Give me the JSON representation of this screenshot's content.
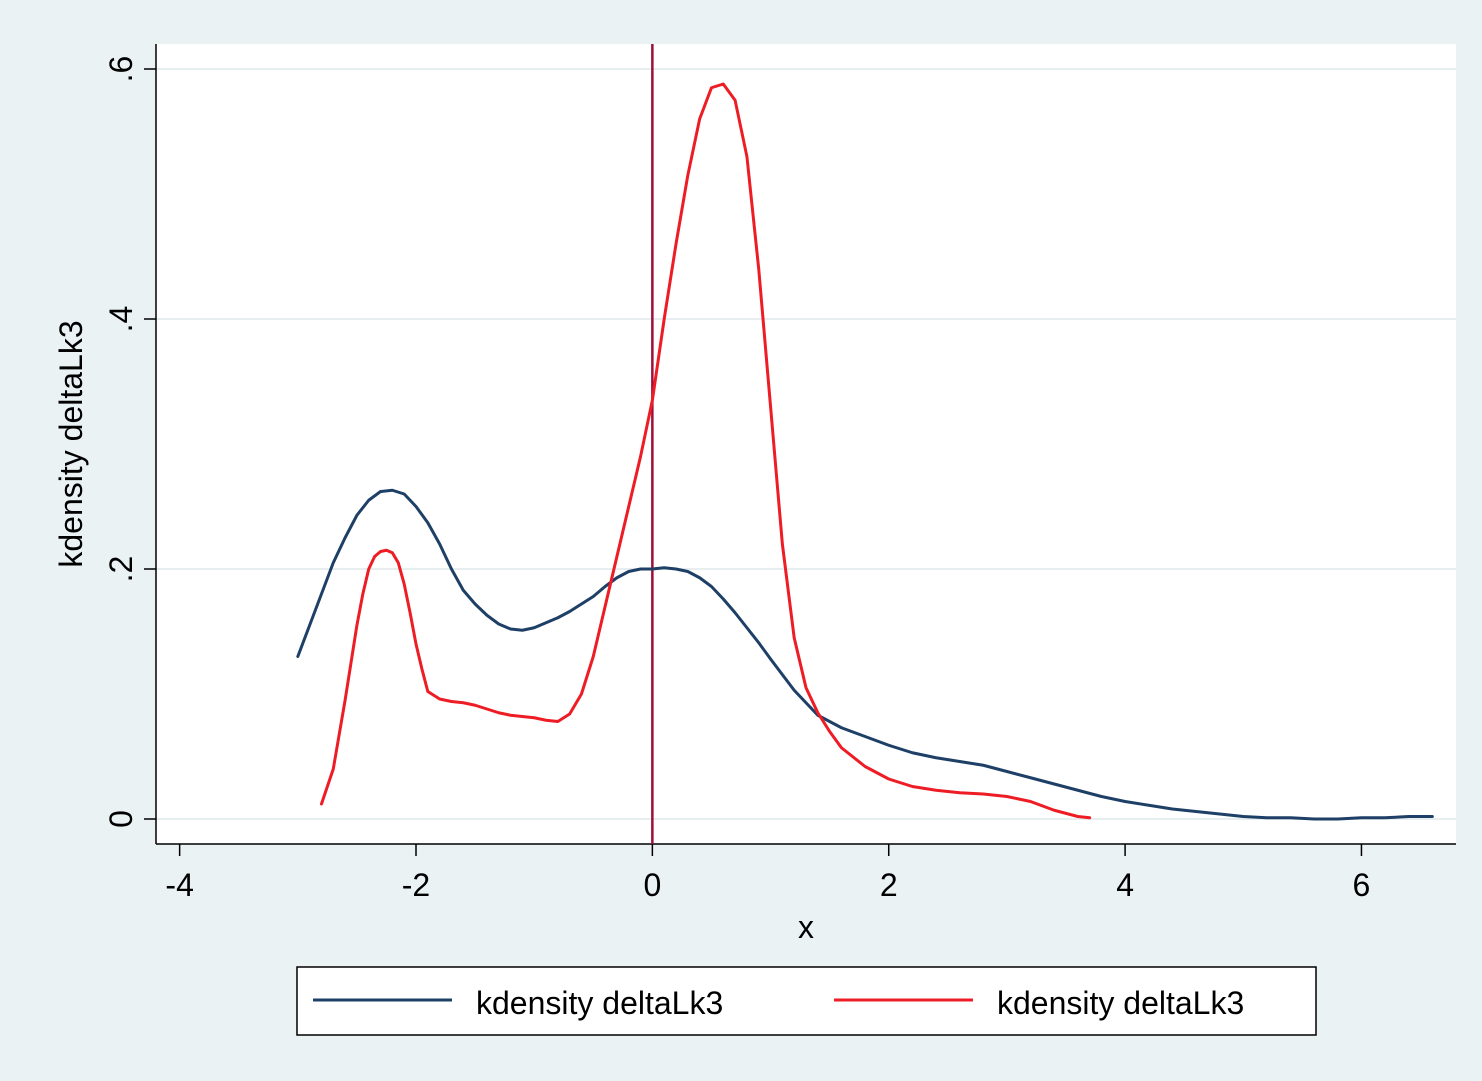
{
  "chart_data": {
    "type": "line",
    "title": "",
    "xlabel": "x",
    "ylabel": "kdensity deltaLk3",
    "xlim": [
      -4.2,
      6.8
    ],
    "ylim": [
      -0.02,
      0.62
    ],
    "x_ticks": [
      -4,
      -2,
      0,
      2,
      4,
      6
    ],
    "x_tick_labels": [
      "-4",
      "-2",
      "0",
      "2",
      "4",
      "6"
    ],
    "y_ticks": [
      0,
      0.2,
      0.4,
      0.6
    ],
    "y_tick_labels": [
      "0",
      ".2",
      ".4",
      ".6"
    ],
    "grid": "horizontal",
    "legend_position": "bottom",
    "reference_line": {
      "x": 0,
      "color": "#9e0f3a"
    },
    "series": [
      {
        "name": "kdensity deltaLk3",
        "color": "#1e3f66",
        "x": [
          -3.0,
          -2.9,
          -2.8,
          -2.7,
          -2.6,
          -2.5,
          -2.4,
          -2.3,
          -2.2,
          -2.1,
          -2.0,
          -1.9,
          -1.8,
          -1.7,
          -1.6,
          -1.5,
          -1.4,
          -1.3,
          -1.2,
          -1.1,
          -1.0,
          -0.9,
          -0.8,
          -0.7,
          -0.6,
          -0.5,
          -0.4,
          -0.3,
          -0.2,
          -0.1,
          0.0,
          0.1,
          0.2,
          0.3,
          0.4,
          0.5,
          0.6,
          0.7,
          0.8,
          0.9,
          1.0,
          1.2,
          1.4,
          1.6,
          1.8,
          2.0,
          2.2,
          2.4,
          2.6,
          2.8,
          3.0,
          3.2,
          3.4,
          3.6,
          3.8,
          4.0,
          4.2,
          4.4,
          4.6,
          4.8,
          5.0,
          5.2,
          5.4,
          5.6,
          5.8,
          6.0,
          6.2,
          6.4,
          6.6
        ],
        "y": [
          0.13,
          0.155,
          0.18,
          0.205,
          0.225,
          0.243,
          0.255,
          0.262,
          0.263,
          0.26,
          0.25,
          0.237,
          0.22,
          0.2,
          0.183,
          0.172,
          0.163,
          0.156,
          0.152,
          0.151,
          0.153,
          0.157,
          0.161,
          0.166,
          0.172,
          0.178,
          0.186,
          0.193,
          0.198,
          0.2,
          0.2,
          0.201,
          0.2,
          0.198,
          0.193,
          0.186,
          0.176,
          0.165,
          0.153,
          0.141,
          0.128,
          0.103,
          0.083,
          0.073,
          0.066,
          0.059,
          0.053,
          0.049,
          0.046,
          0.043,
          0.038,
          0.033,
          0.028,
          0.023,
          0.018,
          0.014,
          0.011,
          0.008,
          0.006,
          0.004,
          0.002,
          0.001,
          0.001,
          0.0,
          0.0,
          0.001,
          0.001,
          0.002,
          0.002
        ]
      },
      {
        "name": "kdensity deltaLk3",
        "color": "#ee1c24",
        "x": [
          -2.8,
          -2.7,
          -2.6,
          -2.5,
          -2.45,
          -2.4,
          -2.35,
          -2.3,
          -2.25,
          -2.2,
          -2.15,
          -2.1,
          -2.05,
          -2.0,
          -1.95,
          -1.9,
          -1.8,
          -1.7,
          -1.6,
          -1.5,
          -1.4,
          -1.3,
          -1.2,
          -1.1,
          -1.0,
          -0.9,
          -0.8,
          -0.7,
          -0.6,
          -0.5,
          -0.4,
          -0.3,
          -0.2,
          -0.1,
          0.0,
          0.1,
          0.2,
          0.3,
          0.4,
          0.5,
          0.6,
          0.7,
          0.8,
          0.9,
          1.0,
          1.1,
          1.2,
          1.3,
          1.4,
          1.5,
          1.6,
          1.8,
          2.0,
          2.2,
          2.4,
          2.6,
          2.8,
          3.0,
          3.2,
          3.4,
          3.6,
          3.7
        ],
        "y": [
          0.012,
          0.04,
          0.095,
          0.155,
          0.18,
          0.2,
          0.21,
          0.214,
          0.215,
          0.213,
          0.205,
          0.188,
          0.165,
          0.14,
          0.12,
          0.102,
          0.096,
          0.094,
          0.093,
          0.091,
          0.088,
          0.085,
          0.083,
          0.082,
          0.081,
          0.079,
          0.078,
          0.084,
          0.1,
          0.13,
          0.17,
          0.21,
          0.25,
          0.29,
          0.335,
          0.4,
          0.46,
          0.515,
          0.56,
          0.585,
          0.588,
          0.575,
          0.53,
          0.44,
          0.33,
          0.22,
          0.145,
          0.105,
          0.085,
          0.07,
          0.057,
          0.042,
          0.032,
          0.026,
          0.023,
          0.021,
          0.02,
          0.018,
          0.014,
          0.007,
          0.002,
          0.001
        ]
      }
    ]
  }
}
